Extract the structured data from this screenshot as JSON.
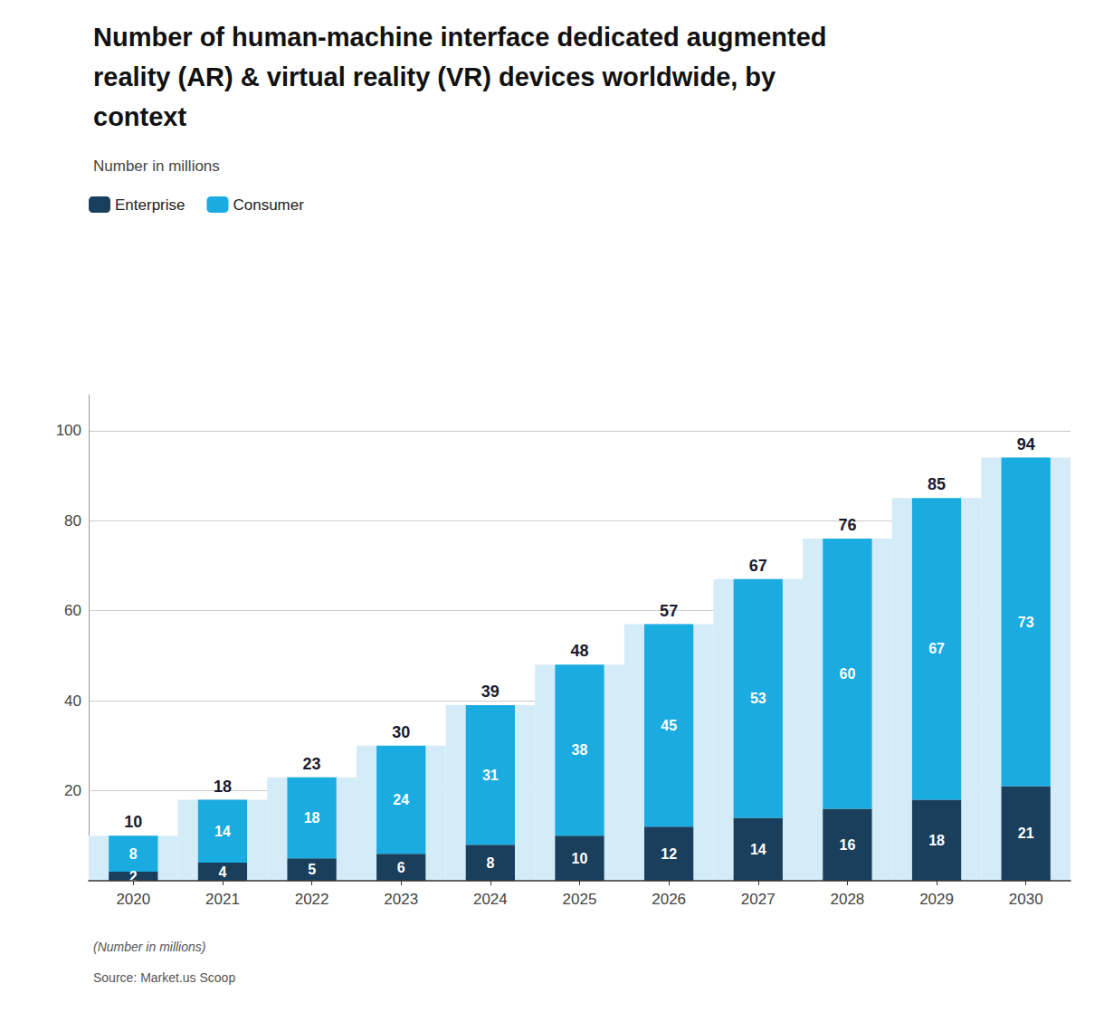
{
  "chart_data": {
    "type": "bar",
    "stacked": true,
    "title": "Number of human-machine interface dedicated augmented\nreality (AR) & virtual reality (VR) devices worldwide, by\ncontext",
    "subtitle": "Number in millions",
    "categories": [
      "2020",
      "2021",
      "2022",
      "2023",
      "2024",
      "2025",
      "2026",
      "2027",
      "2028",
      "2029",
      "2030"
    ],
    "series": [
      {
        "name": "Enterprise",
        "color": "#1a3f5c",
        "values": [
          2,
          4,
          5,
          6,
          8,
          10,
          12,
          14,
          16,
          18,
          21
        ]
      },
      {
        "name": "Consumer",
        "color": "#1aabe0",
        "values": [
          8,
          14,
          18,
          24,
          31,
          38,
          45,
          53,
          60,
          67,
          73
        ]
      }
    ],
    "totals": [
      10,
      18,
      23,
      30,
      39,
      48,
      57,
      67,
      76,
      85,
      94
    ],
    "totals_color": "#d4ecf7",
    "ylim": [
      0,
      108
    ],
    "yticks": [
      20,
      40,
      60,
      80,
      100
    ],
    "grid": true,
    "legend": "upper left",
    "data_labels": true,
    "footnote": "(Number in millions)",
    "source": "Source: Market.us Scoop"
  }
}
